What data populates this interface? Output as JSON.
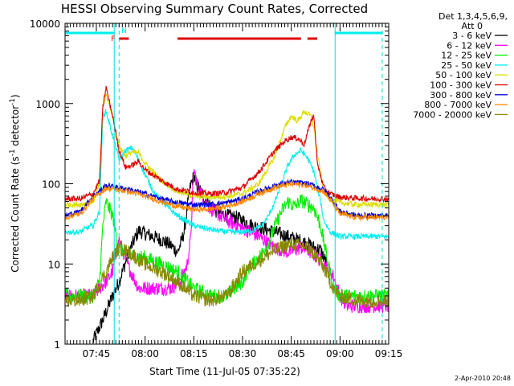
{
  "chart_data": {
    "type": "line",
    "title": "HESSI Observing Summary Count Rates, Corrected",
    "xlabel": "Start Time (11-Jul-05 07:35:22)",
    "ylabel": "Corrected Count Rate (s",
    "ylabel_sup1": "-1",
    "ylabel_mid": " detector",
    "ylabel_sup2": "-1",
    "ylabel_end": ")",
    "y_scale": "log",
    "ylim": [
      1,
      10000
    ],
    "xlim": [
      "07:35:22",
      "09:15:00"
    ],
    "x_ticks": [
      "07:45",
      "08:00",
      "08:15",
      "08:30",
      "08:45",
      "09:00",
      "09:15"
    ],
    "y_ticks": [
      "1",
      "10",
      "100",
      "1000",
      "10000"
    ],
    "grid": false,
    "legend_position": "right, outside plot",
    "legend_header": [
      "Det 1,3,4,5,6,9,",
      "Att 0"
    ],
    "date_stamp": "2-Apr-2010 20:48",
    "flags": {
      "labels": [
        "F",
        "N"
      ],
      "saa_night_segments": [
        [
          "07:35:22",
          "07:50:30"
        ],
        [
          "08:58:30",
          "09:13:00"
        ]
      ],
      "flare_segments": [
        [
          "07:52:00",
          "07:55:00"
        ],
        [
          "08:10:00",
          "08:48:00"
        ],
        [
          "08:50:00",
          "08:53:00"
        ]
      ],
      "night_boundaries": [
        "07:52:00",
        "09:13:00"
      ],
      "saa_boundaries": [
        "07:50:30",
        "08:58:30"
      ]
    },
    "series": [
      {
        "name": "3 - 6 keV",
        "color": "#000000",
        "x": [
          "07:44",
          "07:47",
          "07:50",
          "07:52",
          "07:55",
          "07:58",
          "08:00",
          "08:05",
          "08:08",
          "08:10",
          "08:11",
          "08:12",
          "08:13",
          "08:14",
          "08:15",
          "08:16",
          "08:18",
          "08:20",
          "08:22",
          "08:25",
          "08:28",
          "08:30",
          "08:33",
          "08:36",
          "08:40",
          "08:44",
          "08:47",
          "08:50",
          "08:52",
          "08:54",
          "08:56"
        ],
        "y": [
          1.1,
          2,
          4,
          6,
          14,
          26,
          24,
          20,
          17,
          14,
          18,
          25,
          50,
          95,
          125,
          95,
          70,
          55,
          45,
          40,
          38,
          35,
          30,
          28,
          25,
          22,
          20,
          18,
          16,
          15,
          10
        ]
      },
      {
        "name": "6 - 12 keV",
        "color": "#ff00ff",
        "x": [
          "07:35:22",
          "07:40",
          "07:44",
          "07:46",
          "07:48",
          "07:50",
          "07:52",
          "07:55",
          "07:58",
          "08:00",
          "08:05",
          "08:08",
          "08:11",
          "08:13",
          "08:14",
          "08:15",
          "08:16",
          "08:18",
          "08:20",
          "08:25",
          "08:30",
          "08:35",
          "08:40",
          "08:44",
          "08:46",
          "08:48",
          "08:50",
          "08:53",
          "08:55",
          "08:57",
          "08:58",
          "09:00",
          "09:02",
          "09:05",
          "09:10",
          "09:15"
        ],
        "y": [
          4,
          4,
          4,
          5,
          6,
          8,
          20,
          9,
          5,
          5,
          5,
          5,
          6,
          10,
          20,
          150,
          100,
          65,
          50,
          35,
          28,
          22,
          16,
          14,
          15,
          16,
          15,
          12,
          10,
          8,
          7,
          4,
          3,
          3,
          3,
          3
        ]
      },
      {
        "name": "12 - 25 keV",
        "color": "#00ee00",
        "x": [
          "07:35:22",
          "07:40",
          "07:44",
          "07:46",
          "07:47",
          "07:48",
          "07:50",
          "07:52",
          "07:55",
          "08:00",
          "08:05",
          "08:10",
          "08:15",
          "08:20",
          "08:25",
          "08:30",
          "08:32",
          "08:35",
          "08:38",
          "08:40",
          "08:42",
          "08:44",
          "08:46",
          "08:48",
          "08:50",
          "08:52",
          "08:54",
          "08:56",
          "08:58",
          "09:00",
          "09:05",
          "09:10",
          "09:15"
        ],
        "y": [
          4,
          4,
          4,
          6,
          30,
          60,
          40,
          15,
          13,
          12,
          10,
          8,
          5,
          4,
          4,
          6,
          9,
          12,
          18,
          30,
          45,
          60,
          52,
          62,
          55,
          50,
          30,
          12,
          5,
          4,
          4,
          4,
          4
        ]
      },
      {
        "name": "25 - 50 keV",
        "color": "#00eeee",
        "x": [
          "07:35:22",
          "07:40",
          "07:42",
          "07:44",
          "07:46",
          "07:47",
          "07:48",
          "07:50",
          "07:52",
          "07:54",
          "07:56",
          "07:58",
          "08:00",
          "08:03",
          "08:06",
          "08:10",
          "08:15",
          "08:20",
          "08:25",
          "08:30",
          "08:33",
          "08:36",
          "08:38",
          "08:40",
          "08:42",
          "08:44",
          "08:46",
          "08:48",
          "08:50",
          "08:52",
          "08:54",
          "08:55",
          "08:57",
          "09:00",
          "09:05",
          "09:10",
          "09:15"
        ],
        "y": [
          25,
          25,
          28,
          30,
          45,
          700,
          800,
          400,
          200,
          260,
          280,
          200,
          130,
          75,
          55,
          40,
          30,
          27,
          25,
          25,
          26,
          30,
          40,
          60,
          100,
          170,
          230,
          260,
          210,
          140,
          60,
          35,
          25,
          22,
          22,
          22,
          22
        ]
      },
      {
        "name": "50 - 100 keV",
        "color": "#dddd00",
        "x": [
          "07:35:22",
          "07:40",
          "07:44",
          "07:46",
          "07:47",
          "07:48",
          "07:50",
          "07:52",
          "07:54",
          "07:56",
          "07:58",
          "08:00",
          "08:05",
          "08:10",
          "08:15",
          "08:20",
          "08:25",
          "08:30",
          "08:35",
          "08:40",
          "08:43",
          "08:45",
          "08:47",
          "08:49",
          "08:51",
          "08:52",
          "08:53",
          "08:55",
          "08:57",
          "09:00",
          "09:05",
          "09:10",
          "09:15"
        ],
        "y": [
          55,
          55,
          60,
          100,
          900,
          1300,
          700,
          300,
          220,
          250,
          240,
          180,
          110,
          80,
          70,
          68,
          70,
          75,
          100,
          220,
          500,
          700,
          600,
          800,
          700,
          500,
          240,
          80,
          65,
          58,
          55,
          55,
          55
        ]
      },
      {
        "name": "100 - 300 keV",
        "color": "#dd0000",
        "x": [
          "07:35:22",
          "07:40",
          "07:44",
          "07:46",
          "07:47",
          "07:48",
          "07:50",
          "07:52",
          "07:54",
          "07:56",
          "07:58",
          "08:00",
          "08:05",
          "08:10",
          "08:15",
          "08:20",
          "08:25",
          "08:30",
          "08:35",
          "08:40",
          "08:43",
          "08:45",
          "08:47",
          "08:49",
          "08:51",
          "08:52",
          "08:53",
          "08:55",
          "08:57",
          "09:00",
          "09:05",
          "09:10",
          "09:15"
        ],
        "y": [
          65,
          65,
          75,
          110,
          900,
          1600,
          700,
          260,
          160,
          170,
          190,
          150,
          110,
          85,
          78,
          75,
          78,
          90,
          140,
          260,
          340,
          380,
          370,
          310,
          600,
          700,
          180,
          90,
          75,
          68,
          66,
          65,
          65
        ]
      },
      {
        "name": "300 - 800 keV",
        "color": "#0000dd",
        "x": [
          "07:35:22",
          "07:40",
          "07:44",
          "07:48",
          "07:50",
          "07:55",
          "08:00",
          "08:05",
          "08:10",
          "08:15",
          "08:20",
          "08:25",
          "08:30",
          "08:35",
          "08:40",
          "08:45",
          "08:50",
          "08:55",
          "08:58",
          "09:00",
          "09:05",
          "09:10",
          "09:15"
        ],
        "y": [
          40,
          45,
          70,
          95,
          92,
          85,
          75,
          65,
          58,
          55,
          55,
          58,
          65,
          80,
          95,
          105,
          100,
          85,
          60,
          45,
          40,
          40,
          40
        ]
      },
      {
        "name": "800 - 7000 keV",
        "color": "#ff8800",
        "x": [
          "07:35:22",
          "07:40",
          "07:44",
          "07:48",
          "07:50",
          "07:55",
          "08:00",
          "08:05",
          "08:10",
          "08:15",
          "08:20",
          "08:25",
          "08:30",
          "08:35",
          "08:40",
          "08:45",
          "08:50",
          "08:55",
          "08:58",
          "09:00",
          "09:05",
          "09:10",
          "09:15"
        ],
        "y": [
          38,
          42,
          65,
          88,
          86,
          80,
          70,
          60,
          52,
          48,
          48,
          52,
          60,
          75,
          90,
          100,
          95,
          80,
          55,
          42,
          38,
          38,
          38
        ]
      },
      {
        "name": "7000 - 20000 keV",
        "color": "#888800",
        "x": [
          "07:35:22",
          "07:40",
          "07:44",
          "07:48",
          "07:50",
          "07:52",
          "07:55",
          "08:00",
          "08:05",
          "08:10",
          "08:15",
          "08:20",
          "08:25",
          "08:28",
          "08:30",
          "08:35",
          "08:40",
          "08:45",
          "08:50",
          "08:53",
          "08:55",
          "08:58",
          "09:00",
          "09:05",
          "09:10",
          "09:15"
        ],
        "y": [
          3.5,
          3.5,
          4,
          8,
          12,
          16,
          14,
          10,
          8,
          6,
          4,
          3.5,
          4,
          6,
          8,
          11,
          15,
          18,
          16,
          12,
          9,
          5,
          4,
          3.5,
          3.5,
          3.5
        ]
      }
    ]
  }
}
